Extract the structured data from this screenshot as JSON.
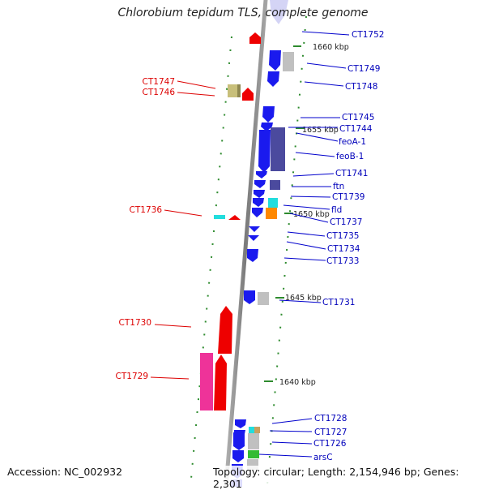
{
  "title": "Chlorobium tepidum TLS, complete genome",
  "footer": {
    "accession": "Accession: NC_002932",
    "topology": "Topology: circular; Length: 2,154,946 bp; Genes: 2,301"
  },
  "colors": {
    "forward_red": "#ee0000",
    "reverse_blue": "#1a1aee",
    "label_red": "#dd0000",
    "label_blue": "#0000bb",
    "axis_gray": "#8c8c8c",
    "tick_green": "#2e8b2e",
    "pink": "#ee3399",
    "olive": "#c8bf7a",
    "cyan": "#22dddd",
    "orange": "#ff8800",
    "purple": "#4b4a9e",
    "light_gray": "#c0c0c0",
    "green": "#33bb33"
  },
  "scale_labels": [
    "1660 kbp",
    "1655 kbp",
    "1650 kbp",
    "1645 kbp",
    "1640 kbp"
  ],
  "gene_labels_right": [
    "CT1752",
    "CT1749",
    "CT1748",
    "CT1745",
    "CT1744",
    "feoA-1",
    "feoB-1",
    "CT1741",
    "ftn",
    "CT1739",
    "fld",
    "CT1737",
    "CT1735",
    "CT1734",
    "CT1733",
    "CT1731",
    "CT1728",
    "CT1727",
    "CT1726",
    "arsC"
  ],
  "gene_labels_left": [
    "CT1747",
    "CT1746",
    "CT1736",
    "CT1730",
    "CT1729"
  ]
}
